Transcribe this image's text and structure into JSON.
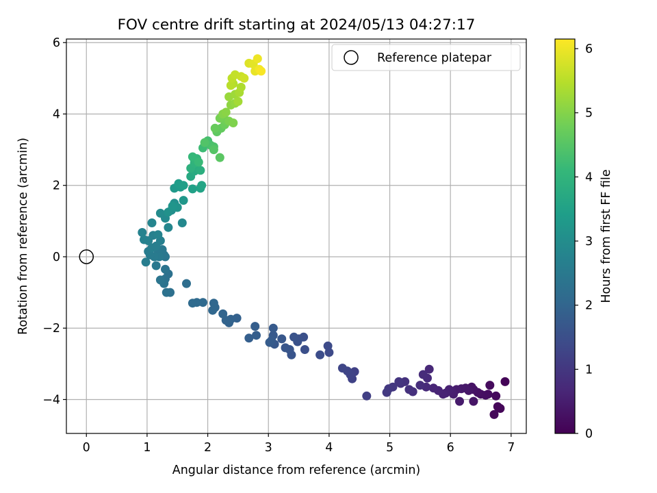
{
  "chart_data": {
    "type": "scatter",
    "title": "FOV centre drift starting at 2024/05/13 04:27:17",
    "xlabel": "Angular distance from reference (arcmin)",
    "ylabel": "Rotation from reference (arcmin)",
    "xlim": [
      -0.33,
      7.25
    ],
    "ylim": [
      -4.95,
      6.1
    ],
    "xticks": [
      0,
      1,
      2,
      3,
      4,
      5,
      6,
      7
    ],
    "xtick_labels": [
      "0",
      "1",
      "2",
      "3",
      "4",
      "5",
      "6",
      "7"
    ],
    "yticks": [
      -4,
      -2,
      0,
      2,
      4,
      6
    ],
    "ytick_labels": [
      "−4",
      "−2",
      "0",
      "2",
      "4",
      "6"
    ],
    "grid": true,
    "legend": {
      "placement": "top-right",
      "entries": [
        {
          "label": "Reference platepar",
          "marker": "open-circle"
        }
      ]
    },
    "reference_point": {
      "x": 0,
      "y": 0,
      "label": "Reference platepar"
    },
    "colorbar": {
      "label": "Hours from first FF file",
      "colormap": "viridis",
      "range": [
        0,
        6.15
      ],
      "ticks": [
        0,
        1,
        2,
        3,
        4,
        5,
        6
      ],
      "tick_labels": [
        "0",
        "1",
        "2",
        "3",
        "4",
        "5",
        "6"
      ],
      "colors": [
        "#440154",
        "#482878",
        "#3e4989",
        "#31688e",
        "#26828e",
        "#1f9e89",
        "#35b779",
        "#6ece58",
        "#b5de2b",
        "#fde725"
      ]
    },
    "points": [
      [
        6.9,
        -3.5,
        0.05
      ],
      [
        6.82,
        -4.25,
        0.08
      ],
      [
        6.78,
        -4.2,
        0.1
      ],
      [
        6.72,
        -4.42,
        0.12
      ],
      [
        6.75,
        -3.9,
        0.15
      ],
      [
        6.65,
        -3.6,
        0.17
      ],
      [
        6.62,
        -3.85,
        0.2
      ],
      [
        6.58,
        -3.88,
        0.22
      ],
      [
        6.5,
        -3.85,
        0.25
      ],
      [
        6.45,
        -3.8,
        0.27
      ],
      [
        6.38,
        -3.72,
        0.3
      ],
      [
        6.35,
        -3.65,
        0.32
      ],
      [
        6.38,
        -4.05,
        0.35
      ],
      [
        6.3,
        -3.75,
        0.37
      ],
      [
        6.25,
        -3.68,
        0.4
      ],
      [
        6.18,
        -3.7,
        0.42
      ],
      [
        6.15,
        -4.05,
        0.45
      ],
      [
        6.1,
        -3.72,
        0.47
      ],
      [
        6.05,
        -3.85,
        0.5
      ],
      [
        6.02,
        -3.78,
        0.52
      ],
      [
        5.98,
        -3.72,
        0.55
      ],
      [
        5.92,
        -3.82,
        0.57
      ],
      [
        5.88,
        -3.85,
        0.6
      ],
      [
        5.8,
        -3.75,
        0.62
      ],
      [
        5.72,
        -3.68,
        0.65
      ],
      [
        5.65,
        -3.15,
        0.7
      ],
      [
        5.6,
        -3.65,
        0.72
      ],
      [
        5.62,
        -3.4,
        0.75
      ],
      [
        5.55,
        -3.3,
        0.78
      ],
      [
        5.5,
        -3.6,
        0.8
      ],
      [
        5.38,
        -3.78,
        0.85
      ],
      [
        5.32,
        -3.72,
        0.88
      ],
      [
        5.25,
        -3.5,
        0.9
      ],
      [
        5.18,
        -3.55,
        0.92
      ],
      [
        5.15,
        -3.5,
        0.95
      ],
      [
        5.05,
        -3.65,
        1.0
      ],
      [
        4.98,
        -3.7,
        1.02
      ],
      [
        4.95,
        -3.8,
        1.05
      ],
      [
        4.62,
        -3.9,
        1.15
      ],
      [
        4.42,
        -3.22,
        1.2
      ],
      [
        4.38,
        -3.42,
        1.23
      ],
      [
        4.35,
        -3.3,
        1.26
      ],
      [
        4.3,
        -3.2,
        1.28
      ],
      [
        4.22,
        -3.12,
        1.3
      ],
      [
        4.0,
        -2.68,
        1.38
      ],
      [
        3.98,
        -2.5,
        1.4
      ],
      [
        3.85,
        -2.75,
        1.45
      ],
      [
        3.6,
        -2.6,
        1.5
      ],
      [
        3.58,
        -2.25,
        1.53
      ],
      [
        3.5,
        -2.3,
        1.55
      ],
      [
        3.48,
        -2.38,
        1.57
      ],
      [
        3.42,
        -2.25,
        1.6
      ],
      [
        3.38,
        -2.75,
        1.62
      ],
      [
        3.35,
        -2.6,
        1.64
      ],
      [
        3.28,
        -2.55,
        1.66
      ],
      [
        3.22,
        -2.3,
        1.68
      ],
      [
        3.1,
        -2.45,
        1.7
      ],
      [
        3.08,
        -2.2,
        1.72
      ],
      [
        3.08,
        -2.0,
        1.74
      ],
      [
        3.05,
        -2.35,
        1.76
      ],
      [
        3.02,
        -2.4,
        1.78
      ],
      [
        2.8,
        -2.2,
        1.82
      ],
      [
        2.78,
        -1.95,
        1.84
      ],
      [
        2.68,
        -2.28,
        1.86
      ],
      [
        2.48,
        -1.72,
        1.9
      ],
      [
        2.38,
        -1.75,
        1.92
      ],
      [
        2.35,
        -1.85,
        1.94
      ],
      [
        2.3,
        -1.78,
        1.96
      ],
      [
        2.25,
        -1.6,
        1.98
      ],
      [
        2.12,
        -1.42,
        2.02
      ],
      [
        2.1,
        -1.3,
        2.04
      ],
      [
        2.08,
        -1.5,
        2.06
      ],
      [
        1.92,
        -1.28,
        2.1
      ],
      [
        1.82,
        -1.28,
        2.12
      ],
      [
        1.75,
        -1.3,
        2.14
      ],
      [
        1.65,
        -0.75,
        2.2
      ],
      [
        1.38,
        -1.0,
        2.25
      ],
      [
        1.35,
        -0.48,
        2.28
      ],
      [
        1.32,
        -1.0,
        2.3
      ],
      [
        1.3,
        -0.62,
        2.32
      ],
      [
        1.28,
        -0.75,
        2.34
      ],
      [
        1.3,
        -0.35,
        2.36
      ],
      [
        1.22,
        -0.65,
        2.38
      ],
      [
        1.3,
        0.0,
        2.42
      ],
      [
        1.28,
        0.05,
        2.44
      ],
      [
        1.15,
        -0.25,
        2.46
      ],
      [
        1.25,
        0.2,
        2.48
      ],
      [
        1.18,
        0.1,
        2.5
      ],
      [
        1.2,
        0.0,
        2.52
      ],
      [
        1.12,
        0.0,
        2.54
      ],
      [
        1.05,
        0.05,
        2.56
      ],
      [
        1.02,
        0.15,
        2.58
      ],
      [
        0.98,
        -0.15,
        2.6
      ],
      [
        1.08,
        0.25,
        2.62
      ],
      [
        1.15,
        0.3,
        2.64
      ],
      [
        1.22,
        0.45,
        2.66
      ],
      [
        1.1,
        0.6,
        2.68
      ],
      [
        1.02,
        0.45,
        2.7
      ],
      [
        0.95,
        0.48,
        2.72
      ],
      [
        0.92,
        0.68,
        2.74
      ],
      [
        1.18,
        0.62,
        2.76
      ],
      [
        1.08,
        0.95,
        2.8
      ],
      [
        1.35,
        0.82,
        2.84
      ],
      [
        1.58,
        0.95,
        2.88
      ],
      [
        1.3,
        1.08,
        2.92
      ],
      [
        1.22,
        1.22,
        2.96
      ],
      [
        1.4,
        1.3,
        3.0
      ],
      [
        1.45,
        1.5,
        3.05
      ],
      [
        1.35,
        1.25,
        3.1
      ],
      [
        1.5,
        1.38,
        3.15
      ],
      [
        1.42,
        1.42,
        3.2
      ],
      [
        1.6,
        1.58,
        3.25
      ],
      [
        1.45,
        1.92,
        3.3
      ],
      [
        1.55,
        1.95,
        3.35
      ],
      [
        1.52,
        2.05,
        3.4
      ],
      [
        1.6,
        2.0,
        3.45
      ],
      [
        1.75,
        1.9,
        3.5
      ],
      [
        1.88,
        1.92,
        3.55
      ],
      [
        1.9,
        2.0,
        3.6
      ],
      [
        1.72,
        2.25,
        3.7
      ],
      [
        1.78,
        2.4,
        3.75
      ],
      [
        1.82,
        2.52,
        3.8
      ],
      [
        1.88,
        2.42,
        3.85
      ],
      [
        1.72,
        2.48,
        3.9
      ],
      [
        1.78,
        2.62,
        3.95
      ],
      [
        1.78,
        2.72,
        4.0
      ],
      [
        1.82,
        2.75,
        4.05
      ],
      [
        1.75,
        2.8,
        4.1
      ],
      [
        1.85,
        2.65,
        4.15
      ],
      [
        1.92,
        3.05,
        4.2
      ],
      [
        2.0,
        3.25,
        4.3
      ],
      [
        2.05,
        3.12,
        4.35
      ],
      [
        2.1,
        3.08,
        4.4
      ],
      [
        1.95,
        3.2,
        4.45
      ],
      [
        2.1,
        3.0,
        4.5
      ],
      [
        2.2,
        2.78,
        4.55
      ],
      [
        2.15,
        3.5,
        4.6
      ],
      [
        2.22,
        3.6,
        4.65
      ],
      [
        2.12,
        3.6,
        4.7
      ],
      [
        2.28,
        3.7,
        4.75
      ],
      [
        2.3,
        3.82,
        4.8
      ],
      [
        2.2,
        3.88,
        4.85
      ],
      [
        2.35,
        3.8,
        4.9
      ],
      [
        2.42,
        3.75,
        4.95
      ],
      [
        2.25,
        4.0,
        5.0
      ],
      [
        2.3,
        4.05,
        5.05
      ],
      [
        2.38,
        4.25,
        5.1
      ],
      [
        2.45,
        4.3,
        5.15
      ],
      [
        2.35,
        4.48,
        5.2
      ],
      [
        2.45,
        4.55,
        5.25
      ],
      [
        2.5,
        4.35,
        5.3
      ],
      [
        2.52,
        4.6,
        5.35
      ],
      [
        2.55,
        4.75,
        5.4
      ],
      [
        2.42,
        4.85,
        5.45
      ],
      [
        2.38,
        4.8,
        5.5
      ],
      [
        2.4,
        5.0,
        5.55
      ],
      [
        2.45,
        5.1,
        5.6
      ],
      [
        2.55,
        5.05,
        5.65
      ],
      [
        2.6,
        5.0,
        5.7
      ],
      [
        2.68,
        5.42,
        5.85
      ],
      [
        2.75,
        5.4,
        5.9
      ],
      [
        2.78,
        5.2,
        5.95
      ],
      [
        2.82,
        5.55,
        6.0
      ],
      [
        2.85,
        5.25,
        6.05
      ],
      [
        2.88,
        5.2,
        6.1
      ]
    ]
  }
}
